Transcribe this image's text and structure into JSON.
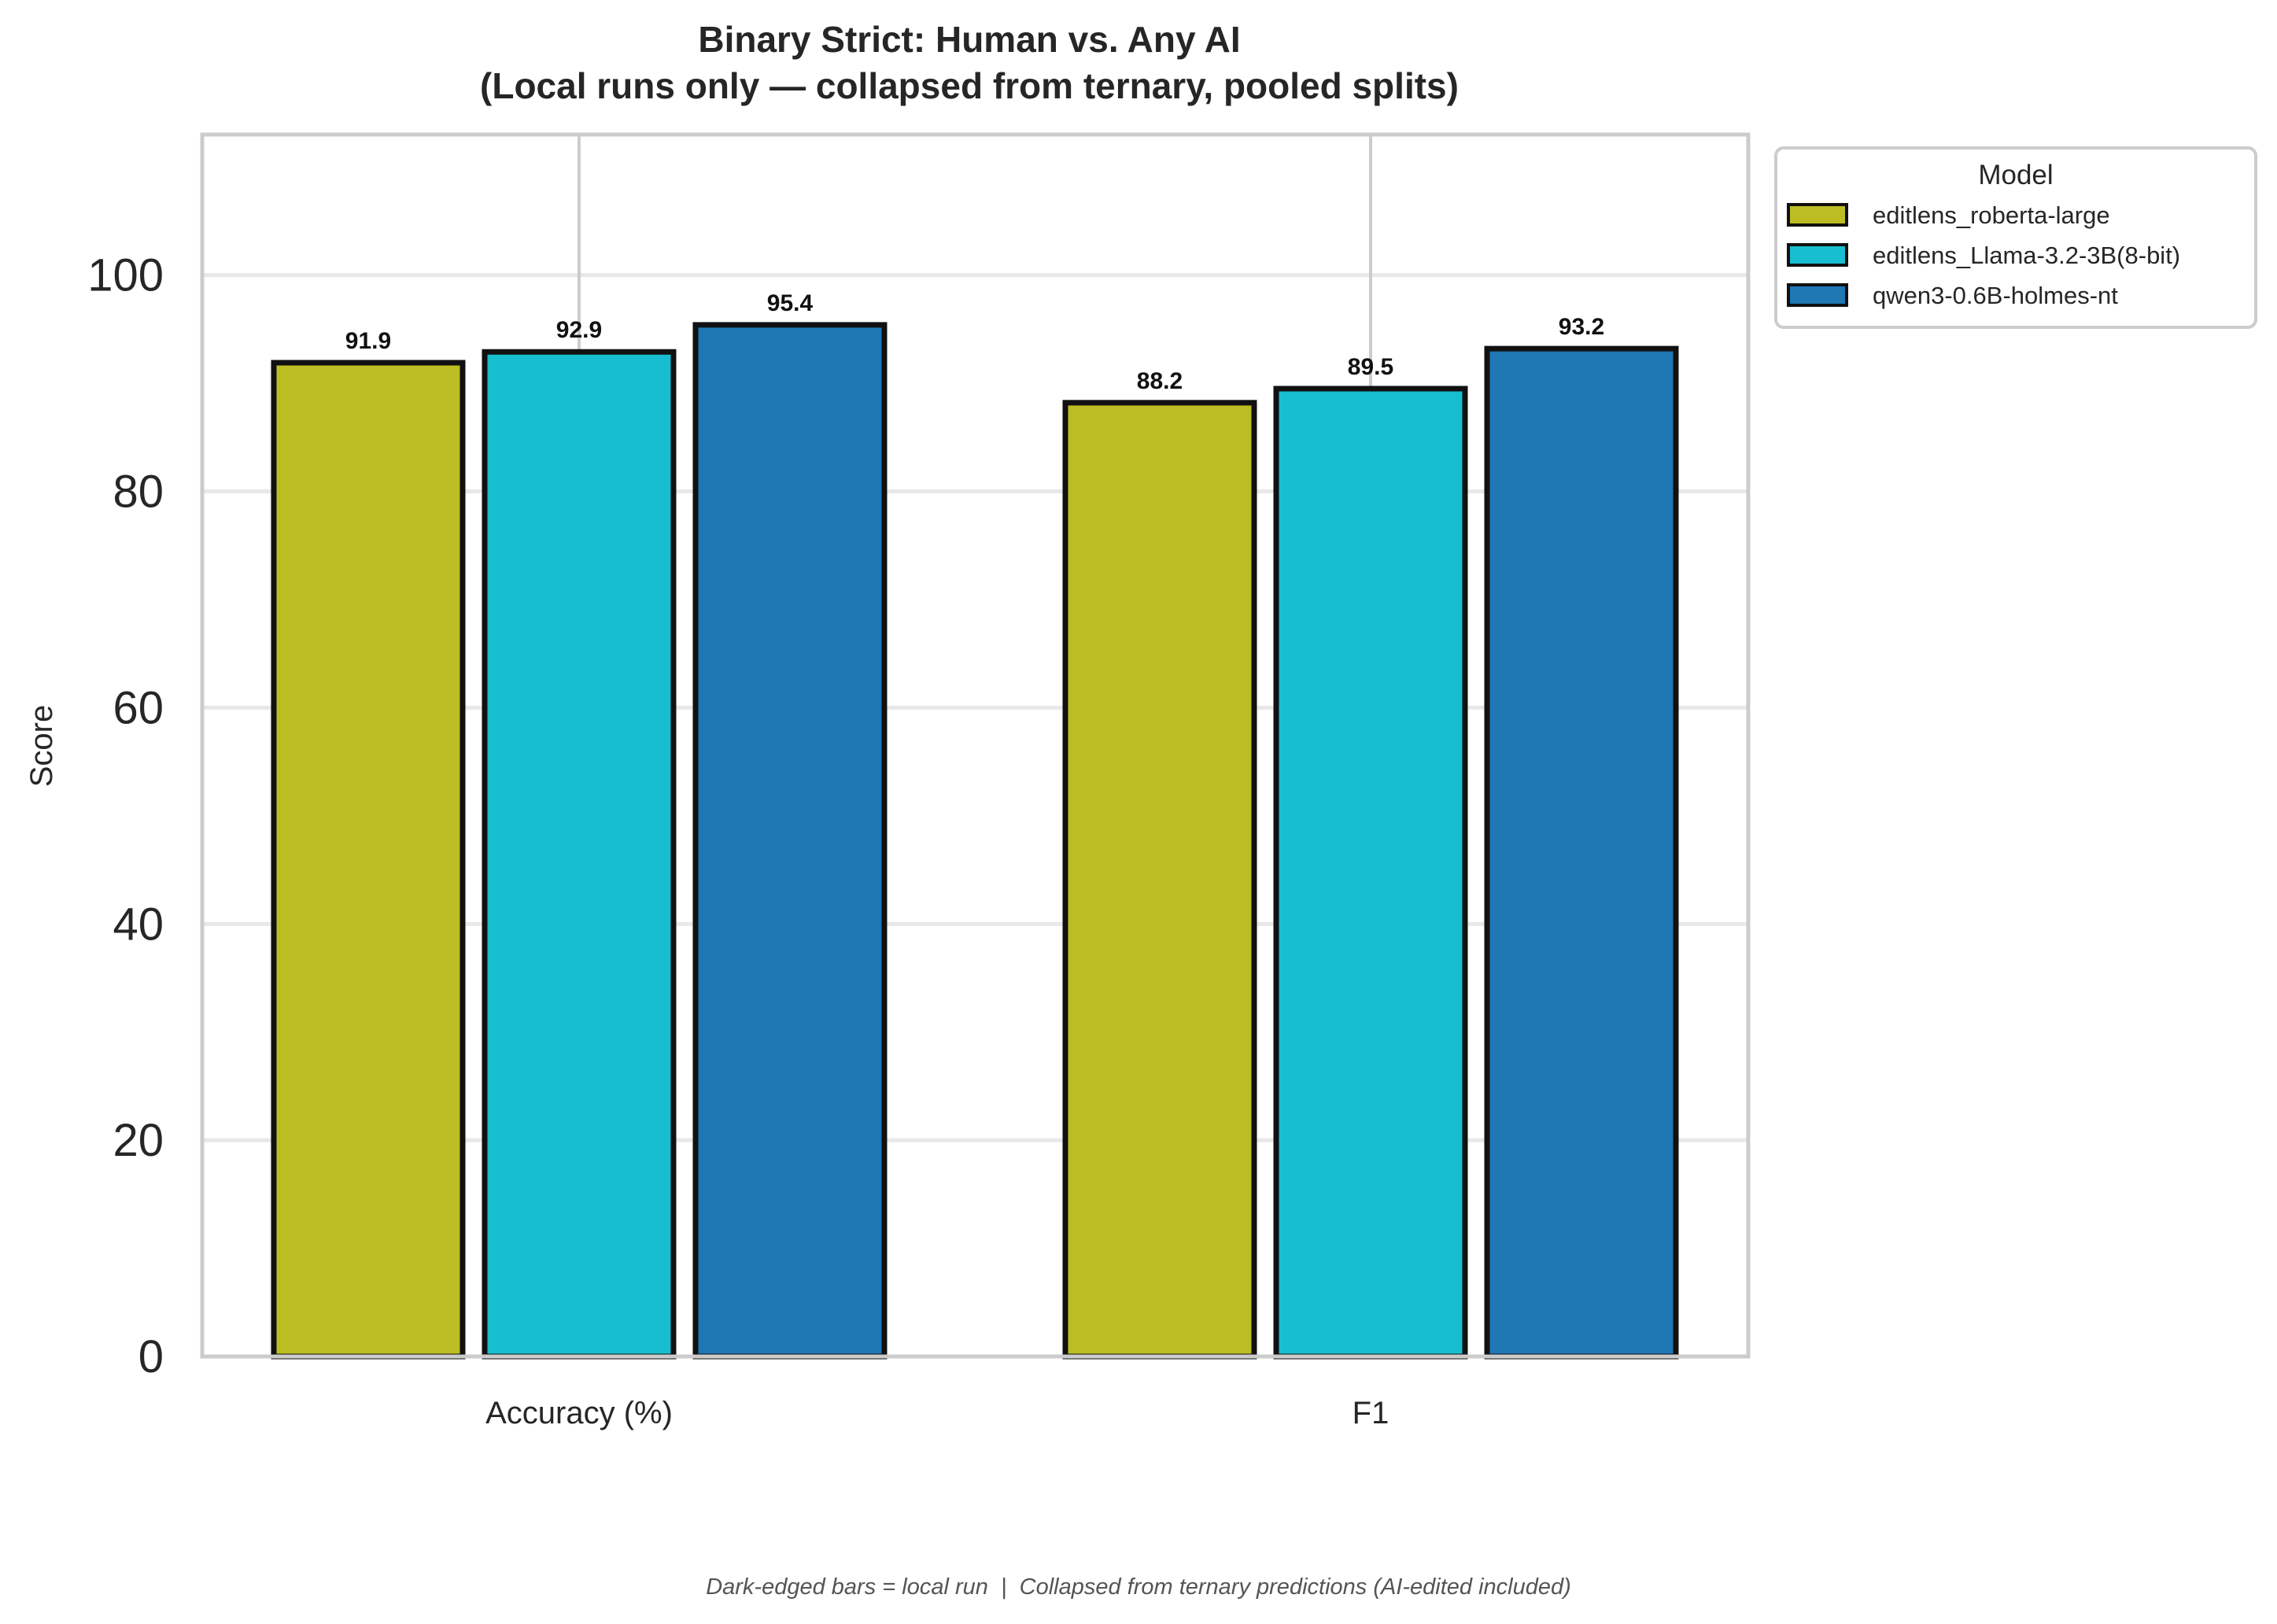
{
  "chart_data": {
    "type": "bar",
    "title": "Binary Strict: Human vs. Any AI",
    "subtitle": "(Local runs only — collapsed from ternary, pooled splits)",
    "xlabel": "",
    "ylabel": "Score",
    "categories": [
      "Accuracy (%)",
      "F1"
    ],
    "series": [
      {
        "name": "editlens_roberta-large",
        "color": "#bcbd22",
        "values": [
          91.9,
          88.2
        ]
      },
      {
        "name": "editlens_Llama-3.2-3B(8-bit)",
        "color": "#17becf",
        "values": [
          92.9,
          89.5
        ]
      },
      {
        "name": "qwen3-0.6B-holmes-nt",
        "color": "#1f77b4",
        "values": [
          95.4,
          93.2
        ]
      }
    ],
    "data_labels": [
      [
        "91.9",
        "88.2"
      ],
      [
        "92.9",
        "89.5"
      ],
      [
        "95.4",
        "93.2"
      ]
    ],
    "ylim": [
      0,
      113
    ],
    "yticks": [
      0,
      20,
      40,
      60,
      80,
      100
    ],
    "grid": true,
    "legend": {
      "title": "Model",
      "placement": "outside-top-right"
    },
    "footnote": "Dark-edged bars = local run  |  Collapsed from ternary predictions (AI-edited included)"
  }
}
